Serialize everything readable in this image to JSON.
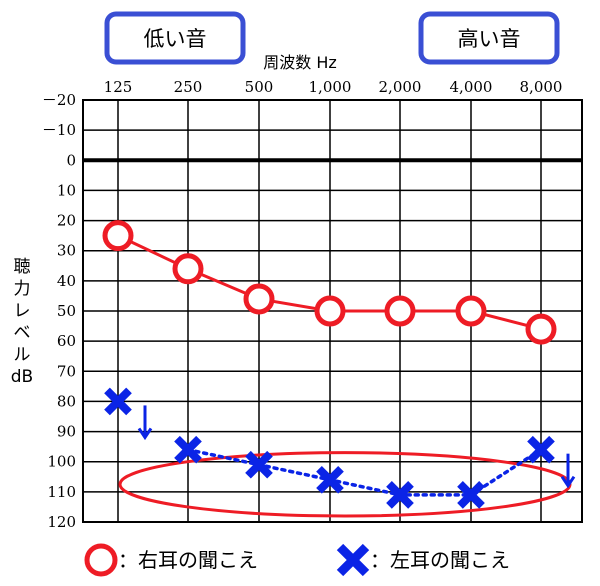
{
  "chart_data": {
    "type": "line",
    "title": "周波数 Hz",
    "low_label": "低い音",
    "high_label": "高い音",
    "ylabel": [
      "聴",
      "力",
      "レ",
      "ベ",
      "ル",
      "dB"
    ],
    "x": [
      "125",
      "250",
      "500",
      "1,000",
      "2,000",
      "4,000",
      "8,000"
    ],
    "y_ticks": [
      "－20",
      "－10",
      "0",
      "10",
      "20",
      "30",
      "40",
      "50",
      "60",
      "70",
      "80",
      "90",
      "100",
      "110",
      "120"
    ],
    "y_tick_values": [
      -20,
      -10,
      0,
      10,
      20,
      30,
      40,
      50,
      60,
      70,
      80,
      90,
      100,
      110,
      120
    ],
    "ylim": [
      -20,
      120
    ],
    "series": [
      {
        "name": "右耳の聞こえ",
        "marker": "circle",
        "color": "#ee1c25",
        "line": "solid",
        "values": [
          25,
          36,
          46,
          50,
          50,
          50,
          56
        ]
      },
      {
        "name": "左耳の聞こえ",
        "marker": "cross",
        "color": "#0b24e6",
        "line": "dotted",
        "values": [
          80,
          96,
          101,
          106,
          111,
          111,
          96
        ],
        "connected_from": 1,
        "down_arrow_at": [
          0,
          6
        ]
      }
    ],
    "highlight": {
      "shape": "ellipse",
      "color": "#ee1c25",
      "range_db": [
        97,
        118
      ]
    },
    "legend": [
      {
        "marker": "circle",
        "text": "：右耳の聞こえ"
      },
      {
        "marker": "cross",
        "text": "：左耳の聞こえ"
      }
    ]
  }
}
